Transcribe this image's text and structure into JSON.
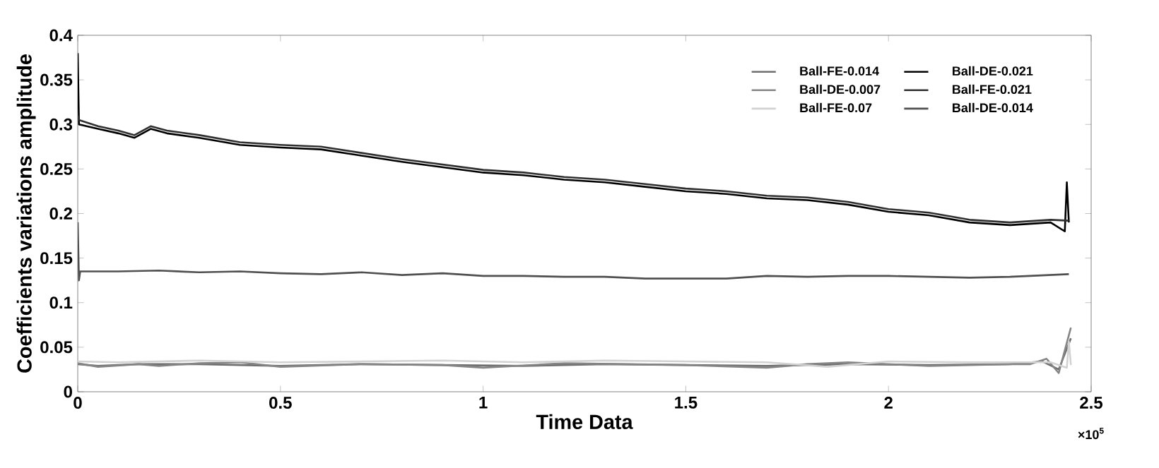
{
  "chart_data": {
    "type": "line",
    "xlabel": "Time Data",
    "ylabel": "Coefficients variations amplitude",
    "annotations": [
      "×10$^{5}$"
    ],
    "xlim": [
      0,
      2.5
    ],
    "xticks": [
      0,
      0.5,
      1,
      1.5,
      2,
      2.5
    ],
    "ylim": [
      0,
      0.4
    ],
    "yticks": [
      0,
      0.05,
      0.1,
      0.15,
      0.2,
      0.25,
      0.3,
      0.35,
      0.4
    ],
    "grid": false,
    "legend": "top right",
    "marker": "none",
    "line_style": "solid",
    "series": [
      {
        "name": "Ball-FE-0.014",
        "color": "#6e6e6e",
        "x": [
          0,
          0.05,
          0.15,
          0.3,
          0.5,
          0.7,
          0.9,
          1.1,
          1.3,
          1.5,
          1.7,
          1.9,
          2.1,
          2.3,
          2.38,
          2.42,
          2.45
        ],
        "values": [
          0.031,
          0.029,
          0.031,
          0.031,
          0.029,
          0.031,
          0.03,
          0.029,
          0.031,
          0.03,
          0.029,
          0.031,
          0.03,
          0.031,
          0.034,
          0.025,
          0.06
        ]
      },
      {
        "name": "Ball-DE-0.021",
        "color": "#000000",
        "x": [
          0,
          0.003,
          0.05,
          0.1,
          0.14,
          0.18,
          0.22,
          0.3,
          0.4,
          0.5,
          0.6,
          0.7,
          0.8,
          0.9,
          1.0,
          1.1,
          1.2,
          1.3,
          1.4,
          1.5,
          1.6,
          1.7,
          1.8,
          1.9,
          2.0,
          2.1,
          2.2,
          2.3,
          2.4,
          2.435,
          2.44,
          2.445
        ],
        "values": [
          0.38,
          0.3,
          0.295,
          0.29,
          0.285,
          0.295,
          0.29,
          0.285,
          0.277,
          0.274,
          0.272,
          0.265,
          0.258,
          0.252,
          0.246,
          0.243,
          0.238,
          0.235,
          0.23,
          0.225,
          0.222,
          0.217,
          0.215,
          0.21,
          0.202,
          0.198,
          0.19,
          0.187,
          0.19,
          0.18,
          0.235,
          0.19
        ]
      },
      {
        "name": "Ball-DE-0.007",
        "color": "#858585",
        "x": [
          0,
          0.05,
          0.15,
          0.2,
          0.3,
          0.4,
          0.5,
          0.7,
          0.9,
          1.0,
          1.2,
          1.5,
          1.7,
          1.8,
          1.9,
          2.1,
          2.3,
          2.35,
          2.39,
          2.42,
          2.45
        ],
        "values": [
          0.032,
          0.028,
          0.031,
          0.029,
          0.032,
          0.033,
          0.028,
          0.031,
          0.03,
          0.027,
          0.032,
          0.03,
          0.027,
          0.031,
          0.033,
          0.029,
          0.031,
          0.031,
          0.037,
          0.021,
          0.072
        ]
      },
      {
        "name": "Ball-FE-0.021",
        "color": "#303030",
        "x": [
          0,
          0.003,
          0.05,
          0.1,
          0.14,
          0.18,
          0.22,
          0.3,
          0.4,
          0.5,
          0.6,
          0.7,
          0.8,
          0.9,
          1.0,
          1.1,
          1.2,
          1.3,
          1.4,
          1.5,
          1.6,
          1.7,
          1.8,
          1.9,
          2.0,
          2.1,
          2.2,
          2.3,
          2.4,
          2.445
        ],
        "values": [
          0.31,
          0.305,
          0.298,
          0.293,
          0.288,
          0.298,
          0.293,
          0.288,
          0.28,
          0.277,
          0.275,
          0.268,
          0.261,
          0.255,
          0.249,
          0.246,
          0.241,
          0.238,
          0.233,
          0.228,
          0.225,
          0.22,
          0.218,
          0.213,
          0.205,
          0.201,
          0.193,
          0.19,
          0.193,
          0.192
        ]
      },
      {
        "name": "Ball-FE-0.07",
        "color": "#d2d2d2",
        "x": [
          0,
          0.1,
          0.3,
          0.5,
          0.7,
          0.9,
          1.1,
          1.3,
          1.5,
          1.7,
          1.85,
          2.0,
          2.2,
          2.4,
          2.44,
          2.445,
          2.45
        ],
        "values": [
          0.034,
          0.033,
          0.035,
          0.033,
          0.034,
          0.035,
          0.033,
          0.035,
          0.034,
          0.033,
          0.028,
          0.034,
          0.033,
          0.033,
          0.027,
          0.056,
          0.03
        ]
      },
      {
        "name": "Ball-DE-0.014",
        "color": "#505050",
        "x": [
          0,
          0.003,
          0.006,
          0.1,
          0.2,
          0.3,
          0.4,
          0.5,
          0.6,
          0.7,
          0.8,
          0.9,
          1.0,
          1.1,
          1.2,
          1.3,
          1.4,
          1.5,
          1.6,
          1.7,
          1.8,
          1.9,
          2.0,
          2.1,
          2.2,
          2.3,
          2.445
        ],
        "values": [
          0.19,
          0.125,
          0.135,
          0.135,
          0.136,
          0.134,
          0.135,
          0.133,
          0.132,
          0.134,
          0.131,
          0.133,
          0.13,
          0.13,
          0.129,
          0.129,
          0.127,
          0.127,
          0.127,
          0.13,
          0.129,
          0.13,
          0.13,
          0.129,
          0.128,
          0.129,
          0.132
        ]
      }
    ]
  }
}
